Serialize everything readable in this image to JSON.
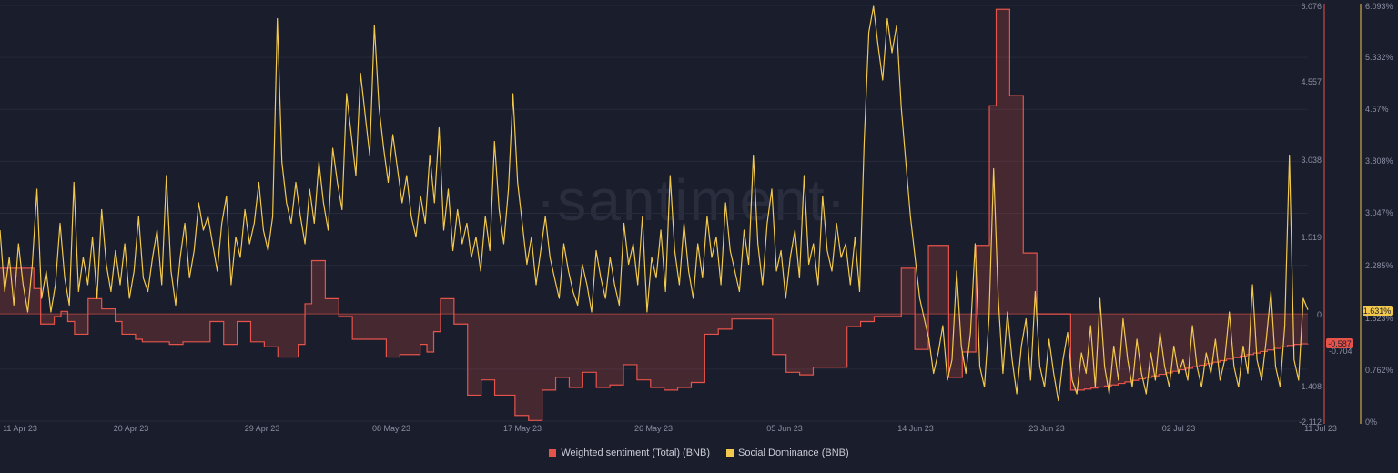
{
  "chart_data": {
    "type": "line",
    "watermark": "·santiment·",
    "x_labels": [
      "11 Apr 23",
      "20 Apr 23",
      "29 Apr 23",
      "08 May 23",
      "17 May 23",
      "26 May 23",
      "05 Jun 23",
      "14 Jun 23",
      "23 Jun 23",
      "02 Jul 23",
      "11 Jul 23"
    ],
    "y_left": {
      "ticks": [
        "6.076",
        "4.557",
        "3.038",
        "1.519",
        "0",
        "-1.408",
        "-2.112"
      ],
      "range": [
        -2.112,
        6.076
      ]
    },
    "y_right": {
      "ticks": [
        "6.093%",
        "5.332%",
        "4.57%",
        "3.808%",
        "3.047%",
        "2.285%",
        "1.523%",
        "0.762%",
        "0%"
      ],
      "range": [
        0,
        6.093
      ]
    },
    "current": {
      "sentiment": "-0.587",
      "dominance": "1.631%",
      "sentiment_low": "-0.704"
    },
    "series": [
      {
        "name": "Weighted sentiment (Total) (BNB)",
        "color": "#e5534b",
        "axis": "left",
        "values": [
          0.9,
          0.9,
          0.9,
          0.9,
          0.9,
          0.5,
          -0.2,
          -0.2,
          -0.05,
          0.05,
          -0.15,
          -0.4,
          -0.4,
          0.3,
          0.3,
          0.1,
          0.1,
          -0.15,
          -0.4,
          -0.4,
          -0.5,
          -0.55,
          -0.55,
          -0.55,
          -0.55,
          -0.6,
          -0.6,
          -0.55,
          -0.55,
          -0.55,
          -0.55,
          -0.15,
          -0.15,
          -0.6,
          -0.6,
          -0.15,
          -0.15,
          -0.55,
          -0.55,
          -0.65,
          -0.65,
          -0.85,
          -0.85,
          -0.85,
          -0.6,
          0.2,
          1.05,
          1.05,
          0.3,
          0.3,
          -0.05,
          -0.05,
          -0.5,
          -0.5,
          -0.5,
          -0.5,
          -0.5,
          -0.85,
          -0.85,
          -0.8,
          -0.8,
          -0.8,
          -0.6,
          -0.75,
          -0.35,
          0.3,
          0.3,
          -0.2,
          -0.2,
          -1.6,
          -1.6,
          -1.3,
          -1.3,
          -1.6,
          -1.6,
          -1.6,
          -2.0,
          -2.0,
          -2.1,
          -2.1,
          -1.5,
          -1.5,
          -1.25,
          -1.25,
          -1.45,
          -1.45,
          -1.15,
          -1.15,
          -1.45,
          -1.45,
          -1.4,
          -1.4,
          -1.0,
          -1.0,
          -1.3,
          -1.3,
          -1.45,
          -1.45,
          -1.5,
          -1.5,
          -1.45,
          -1.45,
          -1.35,
          -1.35,
          -0.4,
          -0.4,
          -0.3,
          -0.3,
          -0.1,
          -0.1,
          -0.1,
          -0.1,
          -0.1,
          -0.1,
          -0.8,
          -0.8,
          -1.15,
          -1.15,
          -1.2,
          -1.2,
          -1.05,
          -1.05,
          -1.05,
          -1.05,
          -1.05,
          -0.25,
          -0.25,
          -0.15,
          -0.15,
          -0.05,
          -0.05,
          -0.05,
          -0.05,
          0.9,
          0.9,
          -0.7,
          -0.7,
          1.35,
          1.35,
          1.35,
          -1.25,
          -1.25,
          -0.75,
          -0.75,
          1.35,
          1.35,
          4.1,
          6.0,
          6.0,
          4.3,
          4.3,
          1.2,
          1.2,
          0.0,
          0.0,
          0.0,
          0.0,
          0.0,
          -1.5,
          -1.5,
          -1.48,
          -1.46,
          -1.44,
          -1.42,
          -1.4,
          -1.37,
          -1.34,
          -1.31,
          -1.28,
          -1.25,
          -1.22,
          -1.19,
          -1.16,
          -1.13,
          -1.1,
          -1.07,
          -1.04,
          -1.01,
          -0.98,
          -0.95,
          -0.92,
          -0.89,
          -0.86,
          -0.83,
          -0.8,
          -0.77,
          -0.74,
          -0.71,
          -0.68,
          -0.65,
          -0.62,
          -0.6,
          -0.59,
          -0.587
        ]
      },
      {
        "name": "Social Dominance (BNB)",
        "color": "#f2c94c",
        "axis": "right",
        "values": [
          2.8,
          1.9,
          2.4,
          1.7,
          2.6,
          2.0,
          1.6,
          2.3,
          3.4,
          1.8,
          2.2,
          1.6,
          2.0,
          2.9,
          2.1,
          1.7,
          3.5,
          1.9,
          2.4,
          2.0,
          2.7,
          1.8,
          3.1,
          2.3,
          1.9,
          2.5,
          2.0,
          2.6,
          1.8,
          2.2,
          3.0,
          2.1,
          1.9,
          2.4,
          2.8,
          2.0,
          3.6,
          2.2,
          1.7,
          2.4,
          2.9,
          2.1,
          2.5,
          3.2,
          2.8,
          3.0,
          2.6,
          2.2,
          2.9,
          3.3,
          2.0,
          2.7,
          2.4,
          3.1,
          2.6,
          2.9,
          3.5,
          2.8,
          2.5,
          3.0,
          5.9,
          3.8,
          3.2,
          2.9,
          3.5,
          3.0,
          2.6,
          3.4,
          2.9,
          3.8,
          3.2,
          2.8,
          4.0,
          3.5,
          3.1,
          4.8,
          4.2,
          3.6,
          5.1,
          4.5,
          3.9,
          5.8,
          4.6,
          4.0,
          3.5,
          4.2,
          3.7,
          3.2,
          3.6,
          3.0,
          2.7,
          3.3,
          2.9,
          3.9,
          3.2,
          4.3,
          2.8,
          3.4,
          2.5,
          3.1,
          2.6,
          2.9,
          2.4,
          2.7,
          2.2,
          3.0,
          2.5,
          4.1,
          3.1,
          2.6,
          3.4,
          4.8,
          3.5,
          2.9,
          2.3,
          2.7,
          2.0,
          2.5,
          3.0,
          2.4,
          2.1,
          1.8,
          2.6,
          2.2,
          1.9,
          1.7,
          2.3,
          2.0,
          1.6,
          2.5,
          2.1,
          1.8,
          2.4,
          2.0,
          1.7,
          2.9,
          2.3,
          2.6,
          2.0,
          3.0,
          1.6,
          2.4,
          2.1,
          2.8,
          1.9,
          3.6,
          2.5,
          2.0,
          2.9,
          2.2,
          1.8,
          2.6,
          2.1,
          3.0,
          2.4,
          2.7,
          2.0,
          3.2,
          2.5,
          2.2,
          1.9,
          2.8,
          2.3,
          3.9,
          2.6,
          2.0,
          2.9,
          3.4,
          2.2,
          2.5,
          1.8,
          2.4,
          2.8,
          2.1,
          3.6,
          2.3,
          2.6,
          2.0,
          3.3,
          2.5,
          2.2,
          2.9,
          2.4,
          2.6,
          2.0,
          2.7,
          1.9,
          4.1,
          5.7,
          6.08,
          5.5,
          5.0,
          5.9,
          5.4,
          5.8,
          4.6,
          3.8,
          3.0,
          2.4,
          1.8,
          1.5,
          1.2,
          0.7,
          1.0,
          1.4,
          0.6,
          0.9,
          2.2,
          1.1,
          0.7,
          1.3,
          2.6,
          0.8,
          0.5,
          1.5,
          3.7,
          1.8,
          0.7,
          1.6,
          0.9,
          0.4,
          1.1,
          1.5,
          0.6,
          1.9,
          0.8,
          0.5,
          1.2,
          0.7,
          0.3,
          0.9,
          1.3,
          0.6,
          0.4,
          1.0,
          0.7,
          1.4,
          0.5,
          1.8,
          0.8,
          0.4,
          1.1,
          0.6,
          1.5,
          0.9,
          0.5,
          1.2,
          0.7,
          0.4,
          1.0,
          0.6,
          1.3,
          0.8,
          0.5,
          1.1,
          0.7,
          0.9,
          0.6,
          1.4,
          0.8,
          0.5,
          1.0,
          0.7,
          1.2,
          0.6,
          0.9,
          1.6,
          0.8,
          0.5,
          1.1,
          0.7,
          2.0,
          0.9,
          0.6,
          1.2,
          1.9,
          0.8,
          0.5,
          1.4,
          3.9,
          0.9,
          0.6,
          1.8,
          1.631
        ]
      }
    ]
  },
  "legend": {
    "sentiment_label": "Weighted sentiment (Total) (BNB)",
    "dominance_label": "Social Dominance (BNB)"
  },
  "colors": {
    "background": "#1a1d2b",
    "sentiment": "#e5534b",
    "dominance": "#f2c94c"
  }
}
